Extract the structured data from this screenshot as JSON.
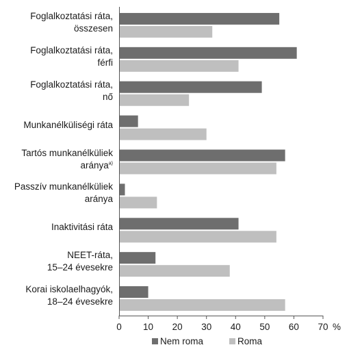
{
  "chart_data": {
    "type": "bar",
    "orientation": "horizontal",
    "categories": [
      [
        "Foglalkoztatási ráta,",
        "összesen"
      ],
      [
        "Foglalkoztatási ráta,",
        "férfi"
      ],
      [
        "Foglalkoztatási ráta,",
        "nő"
      ],
      [
        "Munkanélküliségi ráta"
      ],
      [
        "Tartós munkanélküliek",
        "aránya"
      ],
      [
        "Passzív munkanélküliek",
        "aránya"
      ],
      [
        "Inaktivitási ráta"
      ],
      [
        "NEET-ráta,",
        "15–24 évesekre"
      ],
      [
        "Korai iskolaelhagyók,",
        "18–24 évesekre"
      ]
    ],
    "category_footnotes": [
      "",
      "",
      "",
      "",
      "a)",
      "",
      "",
      "",
      ""
    ],
    "series": [
      {
        "name": "Nem roma",
        "color": "#6e6e6e",
        "values": [
          55,
          61,
          49,
          6.5,
          57,
          2,
          41,
          12.5,
          10
        ]
      },
      {
        "name": "Roma",
        "color": "#bfbfbf",
        "values": [
          32,
          41,
          24,
          30,
          54,
          13,
          54,
          38,
          57
        ]
      }
    ],
    "xlim": [
      0,
      70
    ],
    "xticks": [
      "0",
      "10",
      "20",
      "30",
      "40",
      "50",
      "60",
      "70"
    ],
    "xunit": "%",
    "grid": false,
    "legend_position": "bottom",
    "title": "",
    "xlabel": "",
    "ylabel": ""
  }
}
